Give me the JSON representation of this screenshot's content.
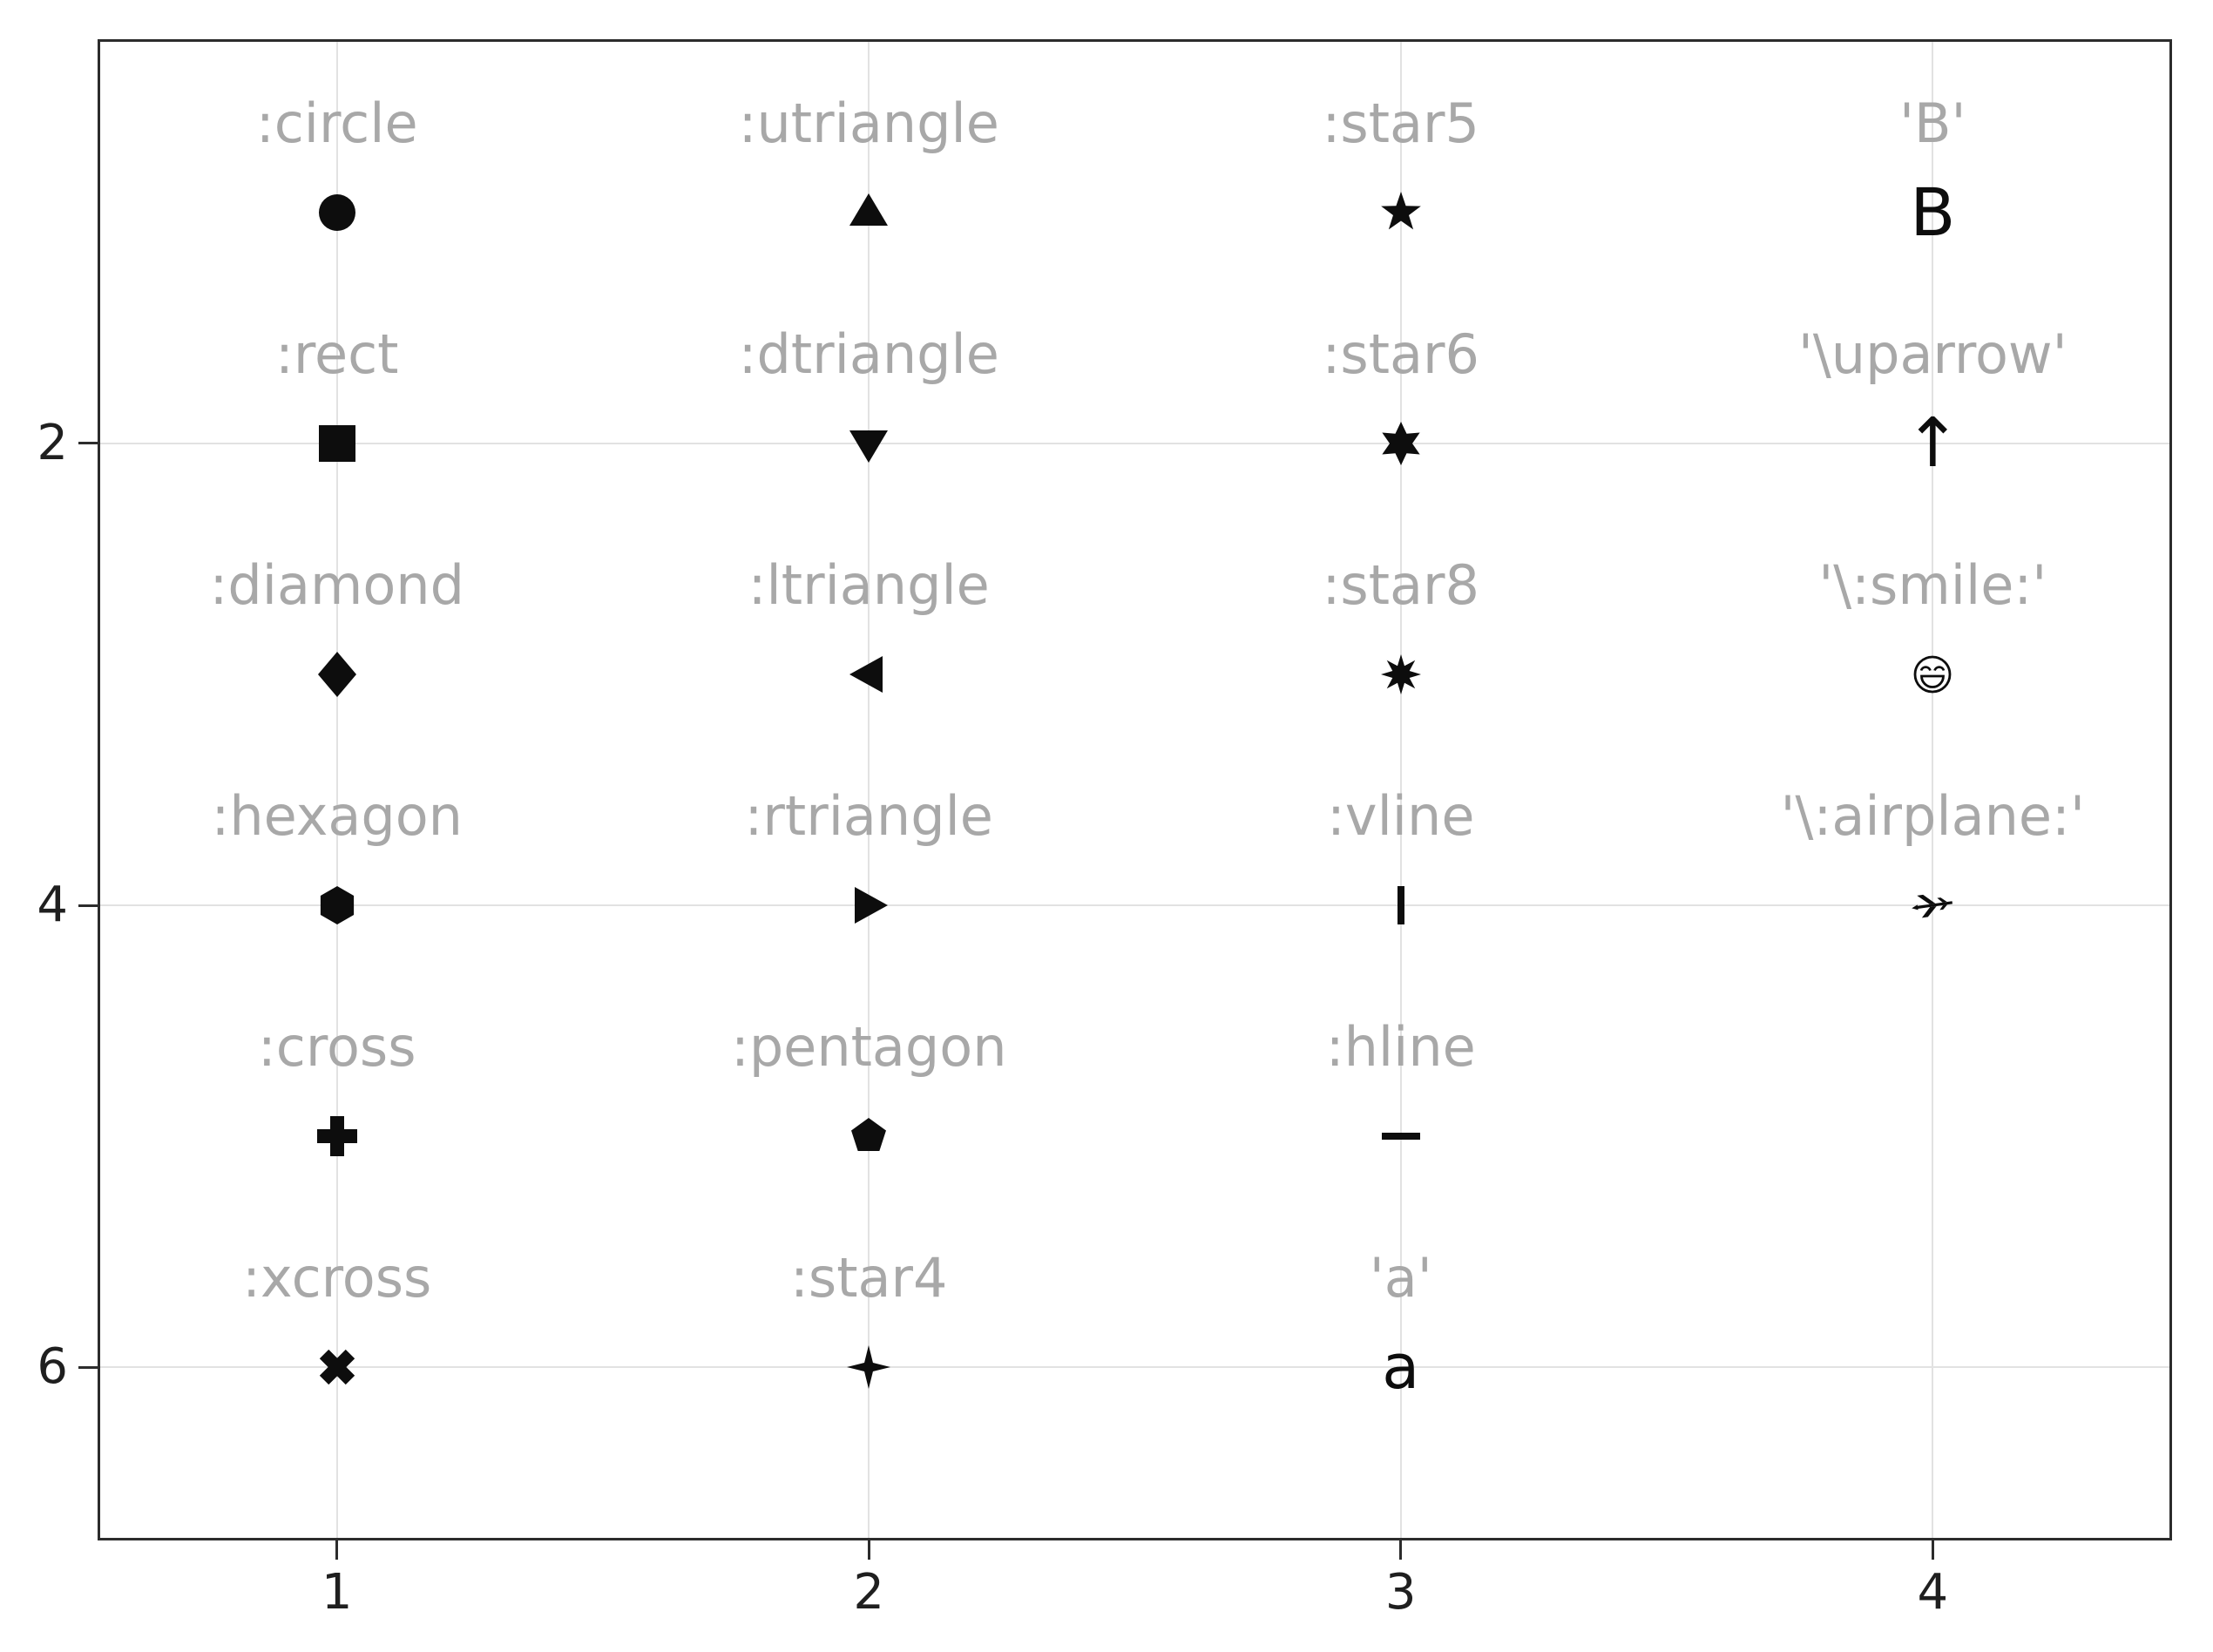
{
  "figure": {
    "background": "#ffffff",
    "frame_color": "#2c2c2c",
    "grid_color": "#e2e2e2",
    "tick_label_color": "#1f1f1f",
    "marker_color": "#0d0d0d",
    "name_label_color": "#a8a8a8"
  },
  "axes": {
    "x_tick_labels": [
      "1",
      "2",
      "3",
      "4"
    ],
    "y_tick_labels": [
      "2",
      "4",
      "6"
    ],
    "x_grid_values": [
      1,
      2,
      3,
      4
    ],
    "y_grid_values": [
      2,
      4,
      6
    ]
  },
  "chart_data": {
    "type": "scatter",
    "title": "",
    "xlabel": "",
    "ylabel": "",
    "xlim": [
      0.55,
      4.45
    ],
    "ylim": [
      0.25,
      6.75
    ],
    "y_axis_flipped": true,
    "grid": true,
    "legend": false,
    "marker_color": "#0d0d0d",
    "label_color": "#a8a8a8",
    "points": [
      {
        "x": 1,
        "y": 1,
        "shape": "circle",
        "label": ":circle"
      },
      {
        "x": 1,
        "y": 2,
        "shape": "rect",
        "label": ":rect"
      },
      {
        "x": 1,
        "y": 3,
        "shape": "diamond",
        "label": ":diamond"
      },
      {
        "x": 1,
        "y": 4,
        "shape": "hexagon",
        "label": ":hexagon"
      },
      {
        "x": 1,
        "y": 5,
        "shape": "cross",
        "label": ":cross"
      },
      {
        "x": 1,
        "y": 6,
        "shape": "xcross",
        "label": ":xcross"
      },
      {
        "x": 2,
        "y": 1,
        "shape": "utriangle",
        "label": ":utriangle"
      },
      {
        "x": 2,
        "y": 2,
        "shape": "dtriangle",
        "label": ":dtriangle"
      },
      {
        "x": 2,
        "y": 3,
        "shape": "ltriangle",
        "label": ":ltriangle"
      },
      {
        "x": 2,
        "y": 4,
        "shape": "rtriangle",
        "label": ":rtriangle"
      },
      {
        "x": 2,
        "y": 5,
        "shape": "pentagon",
        "label": ":pentagon"
      },
      {
        "x": 2,
        "y": 6,
        "shape": "star4",
        "label": ":star4"
      },
      {
        "x": 3,
        "y": 1,
        "shape": "star5",
        "label": ":star5"
      },
      {
        "x": 3,
        "y": 2,
        "shape": "star6",
        "label": ":star6"
      },
      {
        "x": 3,
        "y": 3,
        "shape": "star8",
        "label": ":star8"
      },
      {
        "x": 3,
        "y": 4,
        "shape": "vline",
        "label": ":vline"
      },
      {
        "x": 3,
        "y": 5,
        "shape": "hline",
        "label": ":hline"
      },
      {
        "x": 3,
        "y": 6,
        "shape": "char-a",
        "label": "'a'"
      },
      {
        "x": 4,
        "y": 1,
        "shape": "char-B",
        "label": "'B'"
      },
      {
        "x": 4,
        "y": 2,
        "shape": "uparrow",
        "label": "'\\uparrow'"
      },
      {
        "x": 4,
        "y": 3,
        "shape": "smile",
        "label": "'\\:smile:'"
      },
      {
        "x": 4,
        "y": 4,
        "shape": "airplane",
        "label": "'\\:airplane:'"
      }
    ]
  }
}
